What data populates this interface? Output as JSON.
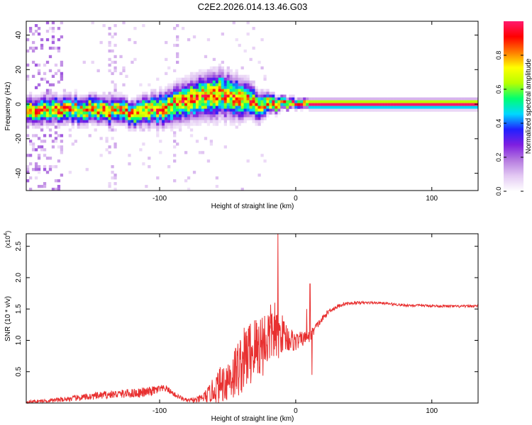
{
  "title": "C2E2.2026.014.13.46.G03",
  "chart_data": [
    {
      "type": "heatmap",
      "xlabel": "Height of straight line (km)",
      "ylabel": "Frequency (Hz)",
      "xlim": [
        -198,
        134
      ],
      "ylim": [
        -50,
        48
      ],
      "x_ticks": [
        -100,
        0,
        100
      ],
      "y_ticks": [
        -40,
        -20,
        0,
        20,
        40
      ],
      "colorbar": {
        "label": "Normalized spectral amplitude",
        "range": [
          0,
          1
        ],
        "ticks": [
          0.0,
          0.2,
          0.4,
          0.6,
          0.8
        ],
        "colors": [
          "#ffffff",
          "#e3c9f3",
          "#b57be0",
          "#7f1fe0",
          "#2020ff",
          "#00d8ff",
          "#00ff70",
          "#b8ff00",
          "#ffff00",
          "#ff7a00",
          "#ff0000",
          "#ff1a6e"
        ]
      },
      "ridge": {
        "x": [
          -198,
          -160,
          -120,
          -100,
          -80,
          -60,
          -40,
          -25,
          -20,
          -10,
          0,
          10,
          60,
          134
        ],
        "freq": [
          -4,
          -3,
          -5,
          -3,
          2,
          6,
          3,
          -1,
          1,
          0,
          0,
          0,
          0,
          0
        ],
        "spread_hz": [
          4,
          4,
          4,
          5,
          6,
          7,
          6,
          4,
          3,
          2,
          1.5,
          1.5,
          1.5,
          1.5
        ]
      }
    },
    {
      "type": "line",
      "xlabel": "Height of straight line (km)",
      "ylabel": "SNR (10 * v/v)",
      "y_multiplier": "(x10",
      "y_multiplier_exp": "4",
      "y_multiplier_close": ")",
      "xlim": [
        -198,
        134
      ],
      "ylim": [
        0,
        2.7
      ],
      "x_ticks": [
        -100,
        0,
        100
      ],
      "y_ticks": [
        0.5,
        1.0,
        1.5,
        2.0,
        2.5
      ],
      "color": "#e83030",
      "series": [
        {
          "x": [
            -198,
            -180,
            -160,
            -140,
            -125,
            -110,
            -100,
            -95,
            -88,
            -80,
            -72,
            -65,
            -55,
            -45,
            -35,
            -28,
            -22,
            -17,
            -14,
            -10,
            -5,
            0,
            5,
            10,
            15,
            25,
            35,
            45,
            60,
            80,
            100,
            120,
            134
          ],
          "y": [
            0.02,
            0.04,
            0.08,
            0.13,
            0.15,
            0.17,
            0.22,
            0.23,
            0.12,
            0.04,
            0.05,
            0.12,
            0.3,
            0.48,
            0.78,
            0.9,
            1.0,
            1.15,
            1.02,
            1.12,
            1.02,
            0.98,
            1.02,
            1.05,
            1.22,
            1.48,
            1.58,
            1.6,
            1.6,
            1.56,
            1.55,
            1.54,
            1.55
          ],
          "noise": [
            0.02,
            0.03,
            0.05,
            0.06,
            0.07,
            0.08,
            0.07,
            0.05,
            0.04,
            0.03,
            0.05,
            0.12,
            0.3,
            0.45,
            0.55,
            0.55,
            0.55,
            0.45,
            0.4,
            0.3,
            0.22,
            0.15,
            0.12,
            0.1,
            0.06,
            0.04,
            0.03,
            0.02,
            0.02,
            0.02,
            0.02,
            0.02,
            0.02
          ]
        }
      ],
      "spikes": [
        {
          "x": -13.0,
          "y": 2.7
        },
        {
          "x": -15.5,
          "y": 1.6
        },
        {
          "x": 10.5,
          "y": 1.9
        },
        {
          "x": 8.0,
          "y": 1.5
        },
        {
          "x": 12.0,
          "y": 0.45
        }
      ]
    }
  ]
}
